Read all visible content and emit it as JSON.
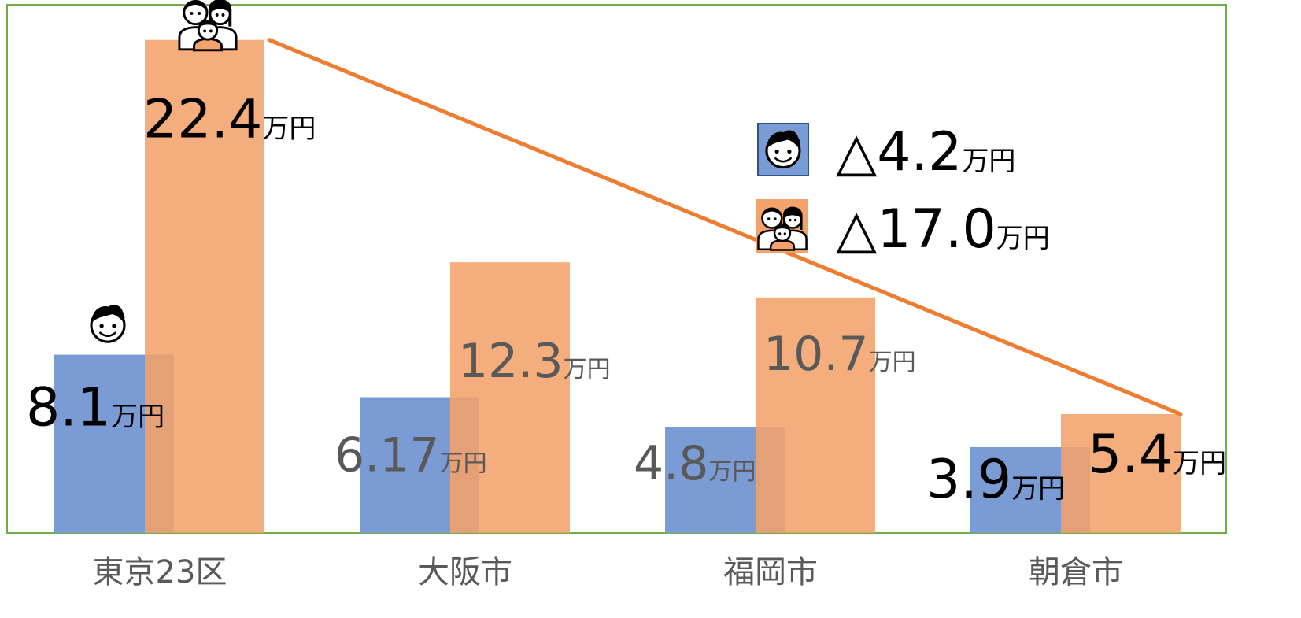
{
  "chart_data": {
    "type": "bar",
    "categories": [
      "東京23区",
      "大阪市",
      "福岡市",
      "朝倉市"
    ],
    "unit": "万円",
    "ylim": [
      0,
      24
    ],
    "grid": false,
    "series": [
      {
        "values": [
          8.1,
          6.17,
          4.8,
          3.9
        ],
        "labels": [
          "8.1",
          "6.17",
          "4.8",
          "3.9"
        ],
        "color": "#7a9bd4",
        "icon": "man-face-icon"
      },
      {
        "values": [
          22.4,
          12.3,
          10.7,
          5.4
        ],
        "labels": [
          "22.4",
          "12.3",
          "10.7",
          "5.4"
        ],
        "color": "#f2a26a",
        "icon": "family-icon"
      }
    ],
    "trend_line": {
      "from": "東京23区",
      "to": "朝倉市",
      "color": "#ed7d31"
    },
    "legend": {
      "placement": "top-right",
      "entries": [
        {
          "icon": "man-face-icon",
          "value": "△4.2",
          "unit": "万円"
        },
        {
          "icon": "family-icon",
          "value": "△17.0",
          "unit": "万円"
        }
      ]
    },
    "colors": {
      "frame": "#70ad47",
      "value_dark": "#000000",
      "value_muted": "#595959",
      "category_label": "#595959"
    }
  }
}
